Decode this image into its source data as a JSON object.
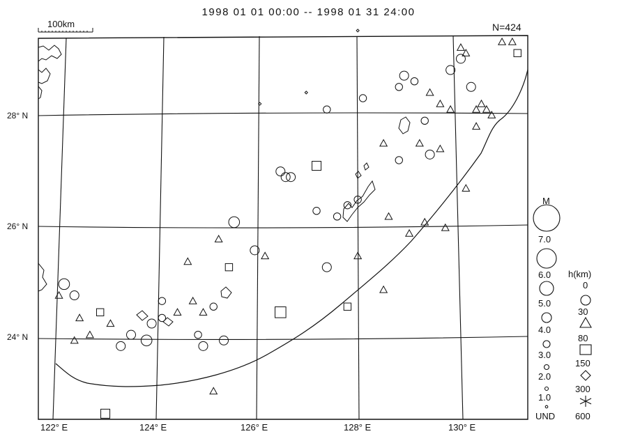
{
  "title": "1998 01 01 00:00 -- 1998 01 31 24:00",
  "scale_bar": {
    "label": "100km"
  },
  "count_label": "N=424",
  "latitude_labels": [
    "28° N",
    "26° N",
    "24° N"
  ],
  "longitude_labels": [
    "122° E",
    "124° E",
    "126° E",
    "128° E",
    "130° E"
  ],
  "legend": {
    "magnitude_title": "M",
    "magnitude_labels": [
      "7.0",
      "6.0",
      "5.0",
      "4.0",
      "3.0",
      "2.0",
      "1.0",
      "UND"
    ],
    "depth_title": "h(km)",
    "depth_labels": [
      "0",
      "30",
      "80",
      "150",
      "300",
      "600"
    ]
  },
  "map_data": {
    "type": "epicenter-map",
    "lon_range": [
      121.8,
      131.3
    ],
    "lat_range": [
      22.7,
      29.5
    ],
    "depth_symbols": {
      "0-30": "circle",
      "30-80": "triangle",
      "80-150": "square",
      "150-300": "diamond",
      "300-600": "asterisk"
    },
    "events_total": 424,
    "events_shown_sample": [
      {
        "lon": 122.3,
        "lat": 25.1,
        "m": 4.0,
        "sym": "circle"
      },
      {
        "lon": 122.5,
        "lat": 24.9,
        "m": 3.5,
        "sym": "circle"
      },
      {
        "lon": 122.2,
        "lat": 24.9,
        "m": 3.0,
        "sym": "triangle"
      },
      {
        "lon": 122.6,
        "lat": 24.5,
        "m": 3.0,
        "sym": "triangle"
      },
      {
        "lon": 122.8,
        "lat": 24.2,
        "m": 3.0,
        "sym": "triangle"
      },
      {
        "lon": 122.5,
        "lat": 24.1,
        "m": 3.0,
        "sym": "triangle"
      },
      {
        "lon": 123.0,
        "lat": 24.6,
        "m": 3.0,
        "sym": "square"
      },
      {
        "lon": 123.2,
        "lat": 24.4,
        "m": 3.0,
        "sym": "triangle"
      },
      {
        "lon": 123.4,
        "lat": 24.0,
        "m": 3.5,
        "sym": "circle"
      },
      {
        "lon": 123.6,
        "lat": 24.2,
        "m": 3.5,
        "sym": "circle"
      },
      {
        "lon": 123.9,
        "lat": 24.1,
        "m": 4.0,
        "sym": "circle"
      },
      {
        "lon": 124.0,
        "lat": 24.4,
        "m": 3.5,
        "sym": "circle"
      },
      {
        "lon": 124.2,
        "lat": 24.5,
        "m": 3.0,
        "sym": "circle"
      },
      {
        "lon": 124.2,
        "lat": 24.8,
        "m": 3.0,
        "sym": "circle"
      },
      {
        "lon": 124.5,
        "lat": 24.6,
        "m": 3.0,
        "sym": "triangle"
      },
      {
        "lon": 124.8,
        "lat": 24.8,
        "m": 3.0,
        "sym": "triangle"
      },
      {
        "lon": 124.9,
        "lat": 24.2,
        "m": 3.0,
        "sym": "circle"
      },
      {
        "lon": 125.0,
        "lat": 24.6,
        "m": 3.0,
        "sym": "triangle"
      },
      {
        "lon": 125.2,
        "lat": 24.7,
        "m": 3.0,
        "sym": "circle"
      },
      {
        "lon": 125.0,
        "lat": 24.0,
        "m": 3.5,
        "sym": "circle"
      },
      {
        "lon": 125.4,
        "lat": 24.1,
        "m": 3.5,
        "sym": "circle"
      },
      {
        "lon": 124.7,
        "lat": 25.5,
        "m": 3.0,
        "sym": "triangle"
      },
      {
        "lon": 125.3,
        "lat": 25.9,
        "m": 3.0,
        "sym": "triangle"
      },
      {
        "lon": 125.5,
        "lat": 25.4,
        "m": 3.0,
        "sym": "square"
      },
      {
        "lon": 125.6,
        "lat": 26.2,
        "m": 4.0,
        "sym": "circle"
      },
      {
        "lon": 126.0,
        "lat": 25.7,
        "m": 3.5,
        "sym": "circle"
      },
      {
        "lon": 126.2,
        "lat": 25.6,
        "m": 3.0,
        "sym": "triangle"
      },
      {
        "lon": 126.5,
        "lat": 24.6,
        "m": 4.0,
        "sym": "square"
      },
      {
        "lon": 125.2,
        "lat": 23.2,
        "m": 3.0,
        "sym": "triangle"
      },
      {
        "lon": 123.1,
        "lat": 22.8,
        "m": 3.5,
        "sym": "square"
      },
      {
        "lon": 127.4,
        "lat": 25.4,
        "m": 3.5,
        "sym": "circle"
      },
      {
        "lon": 127.8,
        "lat": 24.7,
        "m": 3.0,
        "sym": "square"
      },
      {
        "lon": 128.0,
        "lat": 25.6,
        "m": 3.0,
        "sym": "triangle"
      },
      {
        "lon": 128.5,
        "lat": 25.0,
        "m": 3.0,
        "sym": "triangle"
      },
      {
        "lon": 126.5,
        "lat": 27.1,
        "m": 3.5,
        "sym": "circle"
      },
      {
        "lon": 126.6,
        "lat": 27.0,
        "m": 3.5,
        "sym": "circle"
      },
      {
        "lon": 126.7,
        "lat": 27.0,
        "m": 3.5,
        "sym": "circle"
      },
      {
        "lon": 127.2,
        "lat": 27.2,
        "m": 3.5,
        "sym": "square"
      },
      {
        "lon": 127.2,
        "lat": 26.4,
        "m": 3.0,
        "sym": "circle"
      },
      {
        "lon": 127.6,
        "lat": 26.3,
        "m": 3.0,
        "sym": "circle"
      },
      {
        "lon": 127.8,
        "lat": 26.5,
        "m": 3.0,
        "sym": "circle"
      },
      {
        "lon": 128.0,
        "lat": 26.6,
        "m": 3.0,
        "sym": "circle"
      },
      {
        "lon": 127.4,
        "lat": 28.2,
        "m": 3.0,
        "sym": "circle"
      },
      {
        "lon": 128.1,
        "lat": 28.4,
        "m": 3.0,
        "sym": "circle"
      },
      {
        "lon": 128.5,
        "lat": 27.6,
        "m": 3.0,
        "sym": "triangle"
      },
      {
        "lon": 128.8,
        "lat": 27.3,
        "m": 3.0,
        "sym": "circle"
      },
      {
        "lon": 129.2,
        "lat": 27.6,
        "m": 3.0,
        "sym": "triangle"
      },
      {
        "lon": 129.4,
        "lat": 27.4,
        "m": 3.5,
        "sym": "circle"
      },
      {
        "lon": 129.6,
        "lat": 27.5,
        "m": 3.0,
        "sym": "triangle"
      },
      {
        "lon": 128.6,
        "lat": 26.3,
        "m": 3.0,
        "sym": "triangle"
      },
      {
        "lon": 129.0,
        "lat": 26.0,
        "m": 3.0,
        "sym": "triangle"
      },
      {
        "lon": 129.3,
        "lat": 26.2,
        "m": 3.0,
        "sym": "triangle"
      },
      {
        "lon": 129.7,
        "lat": 26.1,
        "m": 3.0,
        "sym": "triangle"
      },
      {
        "lon": 130.1,
        "lat": 26.8,
        "m": 3.0,
        "sym": "triangle"
      },
      {
        "lon": 128.9,
        "lat": 28.8,
        "m": 3.5,
        "sym": "circle"
      },
      {
        "lon": 129.1,
        "lat": 28.7,
        "m": 3.0,
        "sym": "circle"
      },
      {
        "lon": 129.4,
        "lat": 28.5,
        "m": 3.0,
        "sym": "triangle"
      },
      {
        "lon": 129.6,
        "lat": 28.3,
        "m": 3.0,
        "sym": "triangle"
      },
      {
        "lon": 129.8,
        "lat": 28.2,
        "m": 3.0,
        "sym": "triangle"
      },
      {
        "lon": 129.8,
        "lat": 28.9,
        "m": 3.5,
        "sym": "circle"
      },
      {
        "lon": 130.0,
        "lat": 29.1,
        "m": 3.5,
        "sym": "circle"
      },
      {
        "lon": 130.1,
        "lat": 29.2,
        "m": 3.0,
        "sym": "triangle"
      },
      {
        "lon": 130.2,
        "lat": 28.6,
        "m": 3.5,
        "sym": "circle"
      },
      {
        "lon": 130.3,
        "lat": 28.2,
        "m": 3.0,
        "sym": "triangle"
      },
      {
        "lon": 130.4,
        "lat": 28.3,
        "m": 3.0,
        "sym": "triangle"
      },
      {
        "lon": 130.5,
        "lat": 28.2,
        "m": 3.0,
        "sym": "triangle"
      },
      {
        "lon": 130.6,
        "lat": 28.1,
        "m": 3.0,
        "sym": "triangle"
      },
      {
        "lon": 130.3,
        "lat": 27.9,
        "m": 3.0,
        "sym": "triangle"
      },
      {
        "lon": 130.8,
        "lat": 29.4,
        "m": 3.0,
        "sym": "triangle"
      },
      {
        "lon": 131.0,
        "lat": 29.4,
        "m": 3.0,
        "sym": "triangle"
      },
      {
        "lon": 131.1,
        "lat": 29.2,
        "m": 3.0,
        "sym": "square"
      },
      {
        "lon": 130.0,
        "lat": 29.3,
        "m": 3.0,
        "sym": "triangle"
      },
      {
        "lon": 128.8,
        "lat": 28.6,
        "m": 3.0,
        "sym": "circle"
      },
      {
        "lon": 129.3,
        "lat": 28.0,
        "m": 3.0,
        "sym": "circle"
      },
      {
        "lon": 127.0,
        "lat": 28.5,
        "m": 1.0,
        "sym": "diamond"
      },
      {
        "lon": 126.1,
        "lat": 28.3,
        "m": 1.0,
        "sym": "diamond"
      },
      {
        "lon": 128.0,
        "lat": 29.6,
        "m": 1.0,
        "sym": "diamond"
      }
    ]
  }
}
